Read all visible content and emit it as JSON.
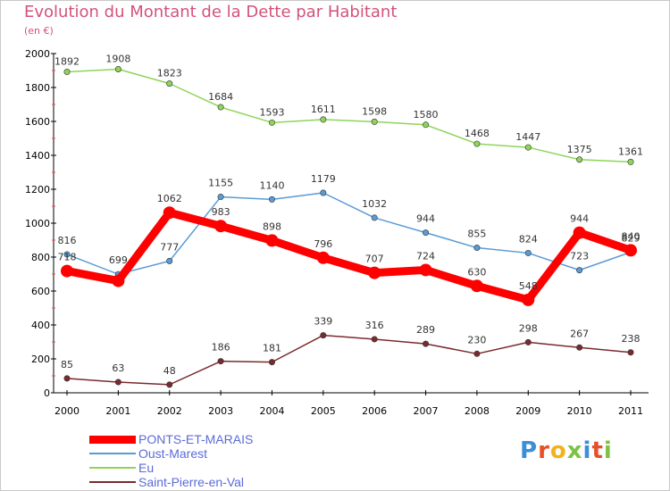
{
  "header": {
    "title": "Evolution du Montant de la Dette par Habitant",
    "subtitle": "(en €)"
  },
  "logo": {
    "text": "Proxiti"
  },
  "chart_data": {
    "type": "line",
    "title": "Evolution du Montant de la Dette par Habitant",
    "subtitle": "(en €)",
    "xlabel": "",
    "ylabel": "",
    "x": [
      2000,
      2001,
      2002,
      2003,
      2004,
      2005,
      2006,
      2007,
      2008,
      2009,
      2010,
      2011
    ],
    "ylim": [
      0,
      2000
    ],
    "yticks": [
      0,
      200,
      400,
      600,
      800,
      1000,
      1200,
      1400,
      1600,
      1800,
      2000
    ],
    "grid": false,
    "legend": "bottom-left",
    "series": [
      {
        "name": "PONTS-ET-MARAIS",
        "color": "#ff0000",
        "values": [
          718,
          660,
          1062,
          983,
          898,
          796,
          707,
          724,
          630,
          548,
          944,
          840
        ],
        "labels": [
          "718",
          "",
          "1062",
          "983",
          "898",
          "796",
          "707",
          "724",
          "630",
          "548",
          "944",
          "840"
        ]
      },
      {
        "name": "Oust-Marest",
        "color": "#5b9bd5",
        "values": [
          816,
          699,
          777,
          1155,
          1140,
          1179,
          1032,
          944,
          855,
          824,
          723,
          829
        ],
        "labels": [
          "816",
          "699",
          "777",
          "1155",
          "1140",
          "1179",
          "1032",
          "944",
          "855",
          "824",
          "723",
          "829"
        ]
      },
      {
        "name": "Eu",
        "color": "#8ed45a",
        "values": [
          1892,
          1908,
          1823,
          1684,
          1593,
          1611,
          1598,
          1580,
          1468,
          1447,
          1375,
          1361
        ],
        "labels": [
          "1892",
          "1908",
          "1823",
          "1684",
          "1593",
          "1611",
          "1598",
          "1580",
          "1468",
          "1447",
          "1375",
          "1361"
        ]
      },
      {
        "name": "Saint-Pierre-en-Val",
        "color": "#7a2a2e",
        "values": [
          85,
          63,
          48,
          186,
          181,
          339,
          316,
          289,
          230,
          298,
          267,
          238
        ],
        "labels": [
          "85",
          "63",
          "48",
          "186",
          "181",
          "339",
          "316",
          "289",
          "230",
          "298",
          "267",
          "238"
        ]
      }
    ]
  }
}
